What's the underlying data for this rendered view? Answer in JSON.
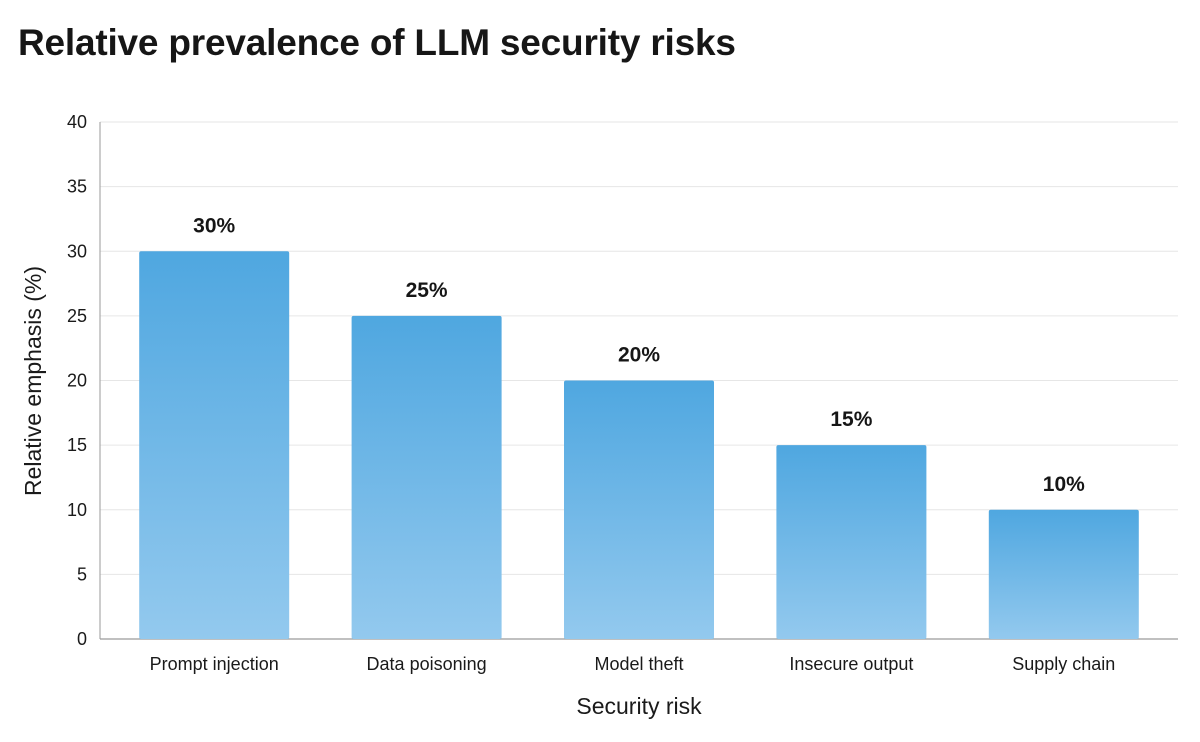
{
  "chart_data": {
    "type": "bar",
    "title": "Relative prevalence of LLM security risks",
    "xlabel": "Security risk",
    "ylabel": "Relative emphasis (%)",
    "categories": [
      "Prompt injection",
      "Data poisoning",
      "Model theft",
      "Insecure output",
      "Supply chain"
    ],
    "values": [
      30,
      25,
      20,
      15,
      10
    ],
    "data_labels": [
      "30%",
      "25%",
      "20%",
      "15%",
      "10%"
    ],
    "ylim": [
      0,
      40
    ],
    "yticks": [
      0,
      5,
      10,
      15,
      20,
      25,
      30,
      35,
      40
    ],
    "grid": true,
    "legend": "none",
    "colors": {
      "bar_top": "#4fa7e0",
      "bar_bottom": "#93c9ee",
      "grid": "#e6e6e6",
      "axis": "#9a9a9a"
    }
  }
}
